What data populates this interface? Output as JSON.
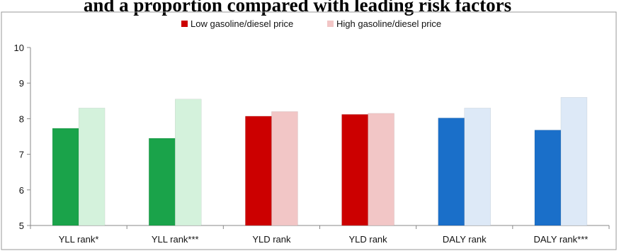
{
  "chart_data": {
    "type": "bar",
    "title": "and a proportion compared with leading risk factors",
    "xlabel": "",
    "ylabel": "",
    "ylim": [
      5,
      10
    ],
    "yticks": [
      5,
      6,
      7,
      8,
      9,
      10
    ],
    "grid": false,
    "legend_position": "top-center",
    "categories": [
      "YLL rank*",
      "YLL rank***",
      "YLD rank",
      "YLD rank",
      "DALY rank",
      "DALY rank***"
    ],
    "series": [
      {
        "name": "Low gasoline/diesel price",
        "values": [
          7.73,
          7.45,
          8.07,
          8.12,
          8.02,
          7.68
        ]
      },
      {
        "name": "High gasoline/diesel price",
        "values": [
          8.3,
          8.55,
          8.2,
          8.15,
          8.3,
          8.6
        ]
      }
    ],
    "colors": {
      "low": [
        "#1aa34a",
        "#1aa34a",
        "#cc0000",
        "#cc0000",
        "#1a6fc9",
        "#1a6fc9"
      ],
      "high": [
        "#d4f2dc",
        "#d4f2dc",
        "#f2c6c6",
        "#f2c6c6",
        "#dde9f7",
        "#dde9f7"
      ],
      "legend_low": "#cc0000",
      "legend_high": "#f2c6c6"
    }
  }
}
